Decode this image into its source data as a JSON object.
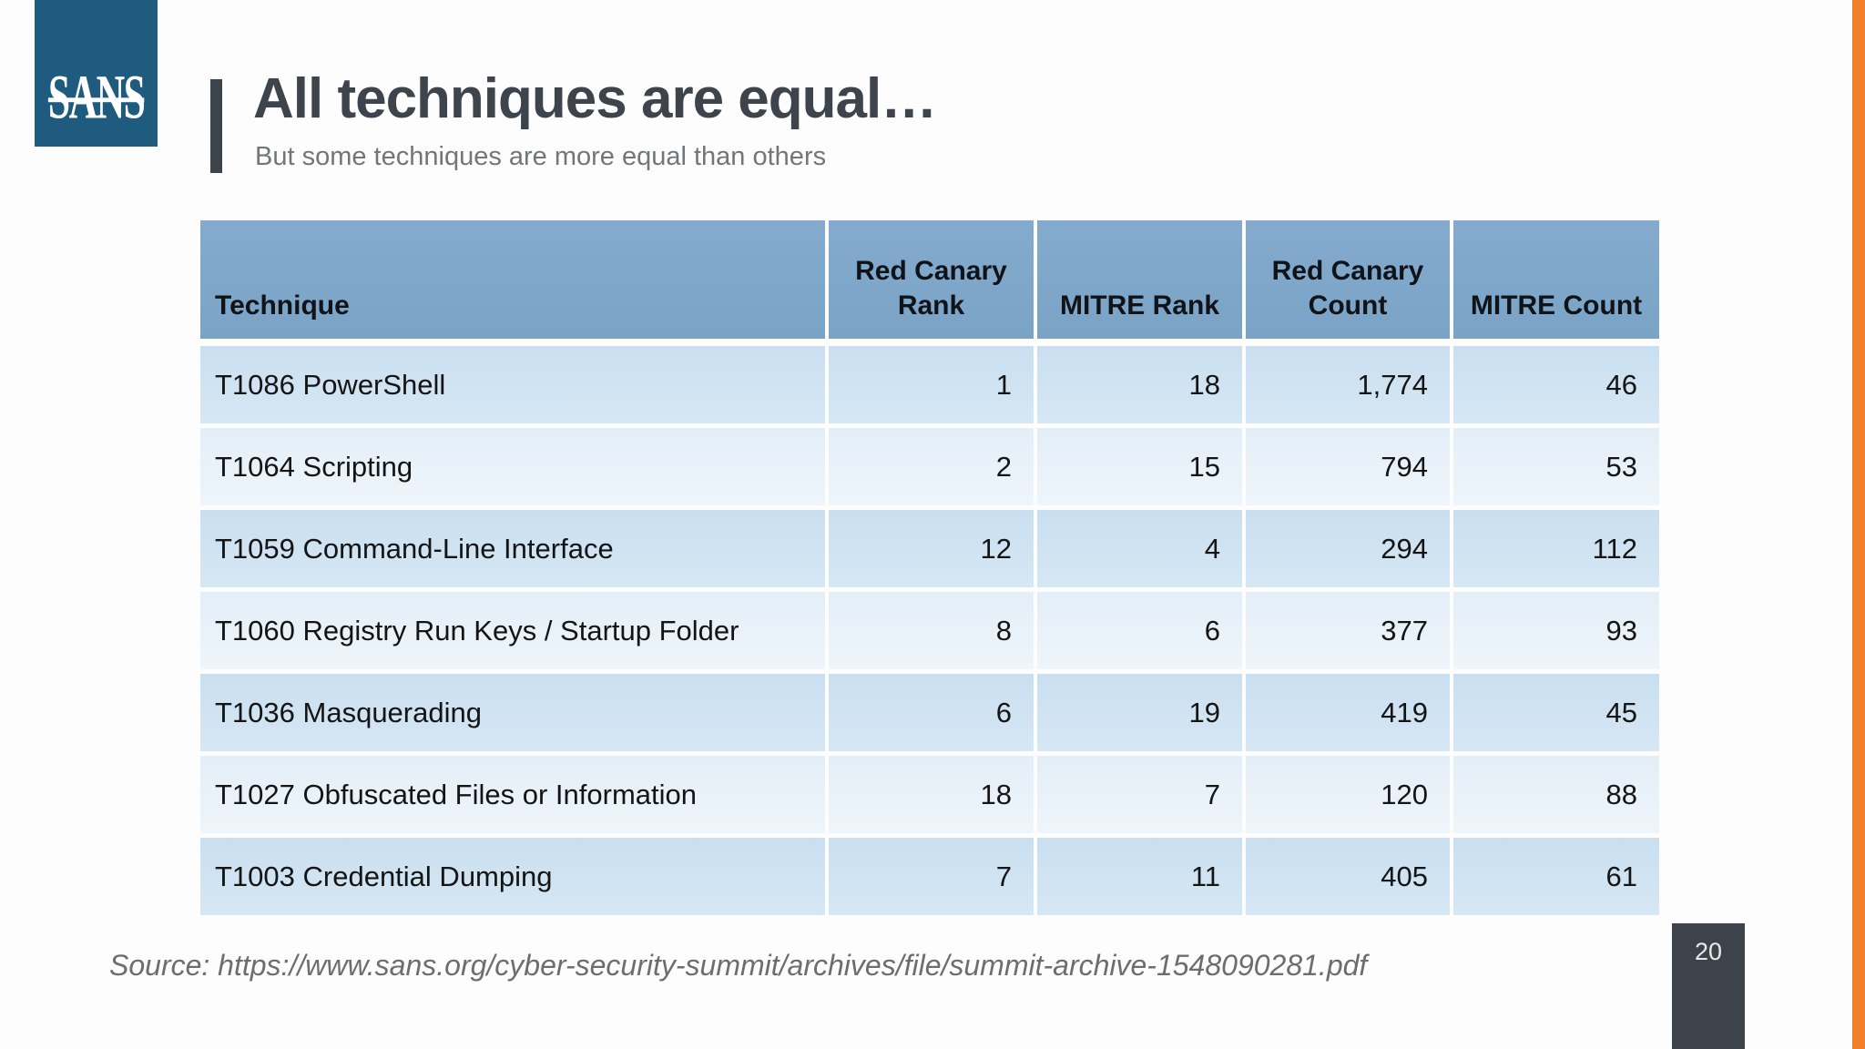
{
  "slide": {
    "logo": "SANS",
    "title": "All techniques are equal…",
    "subtitle": "But some techniques are more equal than others",
    "source": "Source: https://www.sans.org/cyber-security-summit/archives/file/summit-archive-1548090281.pdf",
    "page_number": "20"
  },
  "colors": {
    "logo_bg": "#1e5b7e",
    "accent_dark": "#3e444c",
    "orange_stripe": "#f0812a",
    "table_header_blue": "#7fa6c8",
    "row_odd_blue": "#cfe3f1",
    "row_even_blue": "#e9f1f8"
  },
  "chart_data": {
    "type": "table",
    "columns": [
      "Technique",
      "Red Canary Rank",
      "MITRE Rank",
      "Red Canary Count",
      "MITRE Count"
    ],
    "rows": [
      [
        "T1086 PowerShell",
        "1",
        "18",
        "1,774",
        "46"
      ],
      [
        "T1064 Scripting",
        "2",
        "15",
        "794",
        "53"
      ],
      [
        "T1059 Command-Line Interface",
        "12",
        "4",
        "294",
        "112"
      ],
      [
        "T1060 Registry Run Keys / Startup Folder",
        "8",
        "6",
        "377",
        "93"
      ],
      [
        "T1036 Masquerading",
        "6",
        "19",
        "419",
        "45"
      ],
      [
        "T1027 Obfuscated Files or Information",
        "18",
        "7",
        "120",
        "88"
      ],
      [
        "T1003 Credential Dumping",
        "7",
        "11",
        "405",
        "61"
      ]
    ]
  }
}
